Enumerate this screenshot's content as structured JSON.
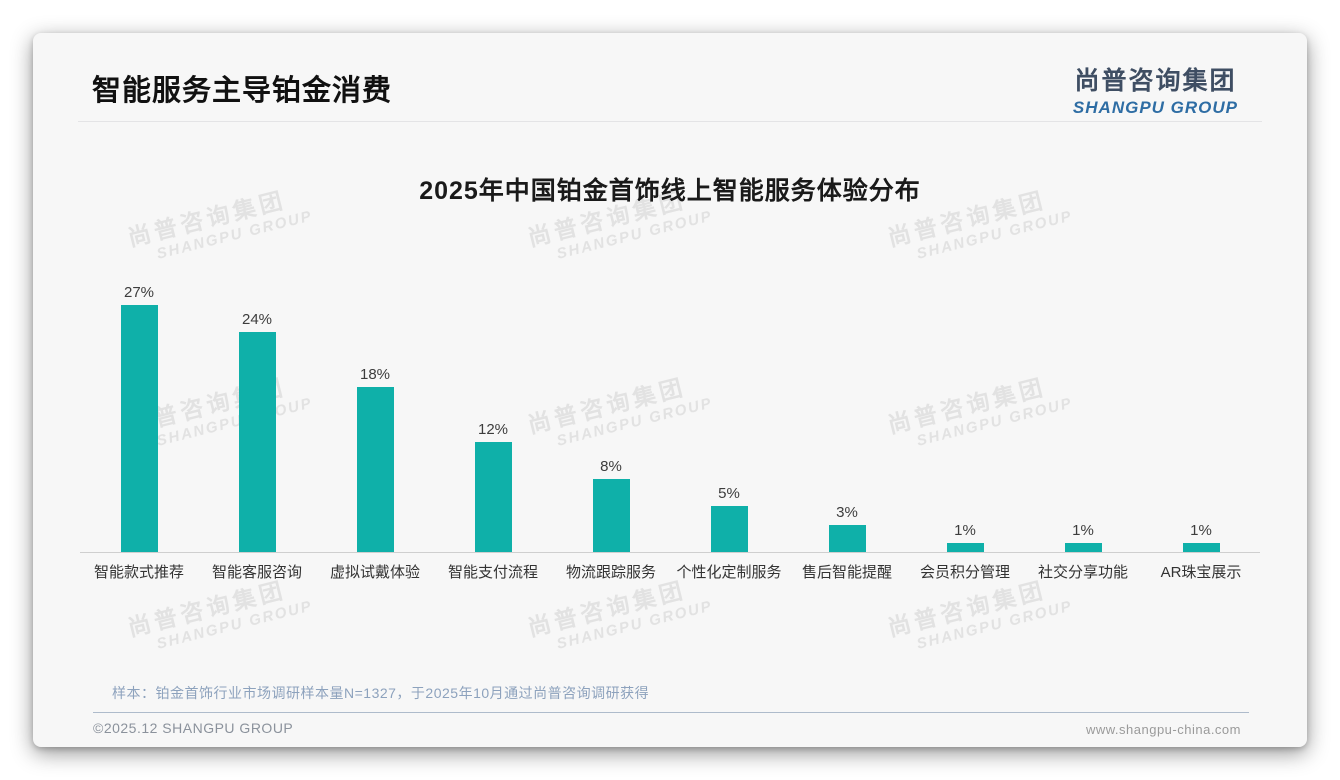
{
  "slide": {
    "header_title": "智能服务主导铂金消费",
    "logo": {
      "cn": "尚普咨询集团",
      "en": "SHANGPU GROUP"
    },
    "watermark": {
      "cn": "尚普咨询集团",
      "en": "SHANGPU GROUP"
    },
    "footer": {
      "sample_note": "样本：铂金首饰行业市场调研样本量N=1327，于2025年10月通过尚普咨询调研获得",
      "copyright": "©2025.12 SHANGPU GROUP",
      "website": "www.shangpu-china.com"
    },
    "colors": {
      "bar": "#0fb0a9",
      "logo_cn": "#3f4e63",
      "logo_en": "#2e6da4",
      "watermark": "#e2e2e2"
    }
  },
  "chart_data": {
    "type": "bar",
    "title": "2025年中国铂金首饰线上智能服务体验分布",
    "categories": [
      "智能款式推荐",
      "智能客服咨询",
      "虚拟试戴体验",
      "智能支付流程",
      "物流跟踪服务",
      "个性化定制服务",
      "售后智能提醒",
      "会员积分管理",
      "社交分享功能",
      "AR珠宝展示"
    ],
    "values": [
      27,
      24,
      18,
      12,
      8,
      5,
      3,
      1,
      1,
      1
    ],
    "value_labels": [
      "27%",
      "24%",
      "18%",
      "12%",
      "8%",
      "5%",
      "3%",
      "1%",
      "1%",
      "1%"
    ],
    "unit": "%",
    "xlabel": "",
    "ylabel": "",
    "ylim": [
      0,
      30
    ],
    "grid": false,
    "legend": false,
    "bar_color": "#0fb0a9"
  }
}
